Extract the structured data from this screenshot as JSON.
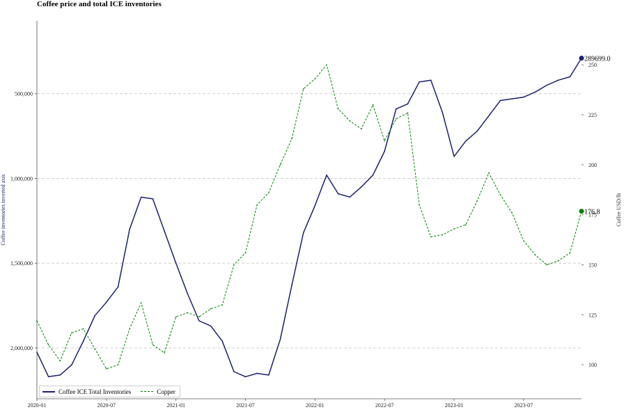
{
  "chart_data": {
    "type": "line",
    "title": "Coffee price and total ICE inventories",
    "x_tick_labels": [
      "2020-01",
      "2020-07",
      "2021-01",
      "2021-07",
      "2022-01",
      "2022-07",
      "2023-01",
      "2023-07"
    ],
    "x_range": [
      "2020-01",
      "2023-12"
    ],
    "left_axis": {
      "label": "Coffee inventories inverted axis",
      "inverted": true,
      "range": [
        2300000,
        70000
      ],
      "tick_values": [
        500000,
        1000000,
        1500000,
        2000000
      ],
      "tick_labels": [
        "500,000",
        "1,000,000",
        "1,500,000",
        "2,000,000"
      ]
    },
    "right_axis": {
      "label": "Coffee USD/lb",
      "range": [
        83,
        272
      ],
      "tick_values": [
        100,
        125,
        150,
        175,
        200,
        225,
        250
      ],
      "tick_labels": [
        "100",
        "125",
        "150",
        "175",
        "200",
        "225",
        "250"
      ]
    },
    "grid": "horizontal dashed at left-axis ticks",
    "legend_position": "bottom-left",
    "series": [
      {
        "name": "Coffee ICE Total Inventories",
        "axis": "left",
        "color": "#1a1f6b",
        "style": "solid",
        "end_label": "289699.0",
        "points": [
          [
            "2020-01",
            2025000
          ],
          [
            "2020-02",
            2170000
          ],
          [
            "2020-03",
            2160000
          ],
          [
            "2020-04",
            2100000
          ],
          [
            "2020-05",
            1960000
          ],
          [
            "2020-06",
            1810000
          ],
          [
            "2020-07",
            1730000
          ],
          [
            "2020-08",
            1640000
          ],
          [
            "2020-09",
            1300000
          ],
          [
            "2020-10",
            1110000
          ],
          [
            "2020-11",
            1120000
          ],
          [
            "2020-12",
            1310000
          ],
          [
            "2021-01",
            1500000
          ],
          [
            "2021-02",
            1680000
          ],
          [
            "2021-03",
            1840000
          ],
          [
            "2021-04",
            1870000
          ],
          [
            "2021-05",
            1960000
          ],
          [
            "2021-06",
            2140000
          ],
          [
            "2021-07",
            2170000
          ],
          [
            "2021-08",
            2150000
          ],
          [
            "2021-09",
            2160000
          ],
          [
            "2021-10",
            1950000
          ],
          [
            "2021-11",
            1630000
          ],
          [
            "2021-12",
            1320000
          ],
          [
            "2022-01",
            1160000
          ],
          [
            "2022-02",
            980000
          ],
          [
            "2022-03",
            1090000
          ],
          [
            "2022-04",
            1110000
          ],
          [
            "2022-05",
            1050000
          ],
          [
            "2022-06",
            980000
          ],
          [
            "2022-07",
            840000
          ],
          [
            "2022-08",
            590000
          ],
          [
            "2022-09",
            560000
          ],
          [
            "2022-10",
            430000
          ],
          [
            "2022-11",
            420000
          ],
          [
            "2022-12",
            610000
          ],
          [
            "2023-01",
            870000
          ],
          [
            "2023-02",
            780000
          ],
          [
            "2023-03",
            720000
          ],
          [
            "2023-04",
            630000
          ],
          [
            "2023-05",
            540000
          ],
          [
            "2023-06",
            530000
          ],
          [
            "2023-07",
            520000
          ],
          [
            "2023-08",
            490000
          ],
          [
            "2023-09",
            450000
          ],
          [
            "2023-10",
            420000
          ],
          [
            "2023-11",
            400000
          ],
          [
            "2023-12",
            289699
          ]
        ]
      },
      {
        "name": "Copper",
        "axis": "right",
        "color": "#008000",
        "style": "dashed",
        "end_label": "176.8",
        "points": [
          [
            "2020-01",
            122
          ],
          [
            "2020-02",
            110
          ],
          [
            "2020-03",
            102
          ],
          [
            "2020-04",
            116
          ],
          [
            "2020-05",
            118
          ],
          [
            "2020-06",
            108
          ],
          [
            "2020-07",
            98
          ],
          [
            "2020-08",
            100
          ],
          [
            "2020-09",
            118
          ],
          [
            "2020-10",
            131
          ],
          [
            "2020-11",
            110
          ],
          [
            "2020-12",
            106
          ],
          [
            "2021-01",
            124
          ],
          [
            "2021-02",
            126
          ],
          [
            "2021-03",
            124
          ],
          [
            "2021-04",
            128
          ],
          [
            "2021-05",
            130
          ],
          [
            "2021-06",
            150
          ],
          [
            "2021-07",
            156
          ],
          [
            "2021-08",
            180
          ],
          [
            "2021-09",
            186
          ],
          [
            "2021-10",
            200
          ],
          [
            "2021-11",
            213
          ],
          [
            "2021-12",
            238
          ],
          [
            "2022-01",
            243
          ],
          [
            "2022-02",
            250
          ],
          [
            "2022-03",
            228
          ],
          [
            "2022-04",
            222
          ],
          [
            "2022-05",
            218
          ],
          [
            "2022-06",
            230
          ],
          [
            "2022-07",
            212
          ],
          [
            "2022-08",
            223
          ],
          [
            "2022-09",
            226
          ],
          [
            "2022-10",
            180
          ],
          [
            "2022-11",
            164
          ],
          [
            "2022-12",
            165
          ],
          [
            "2023-01",
            168
          ],
          [
            "2023-02",
            170
          ],
          [
            "2023-03",
            182
          ],
          [
            "2023-04",
            196
          ],
          [
            "2023-05",
            185
          ],
          [
            "2023-06",
            176
          ],
          [
            "2023-07",
            162
          ],
          [
            "2023-08",
            155
          ],
          [
            "2023-09",
            150
          ],
          [
            "2023-10",
            152
          ],
          [
            "2023-11",
            156
          ],
          [
            "2023-12",
            176.8
          ]
        ]
      }
    ]
  }
}
